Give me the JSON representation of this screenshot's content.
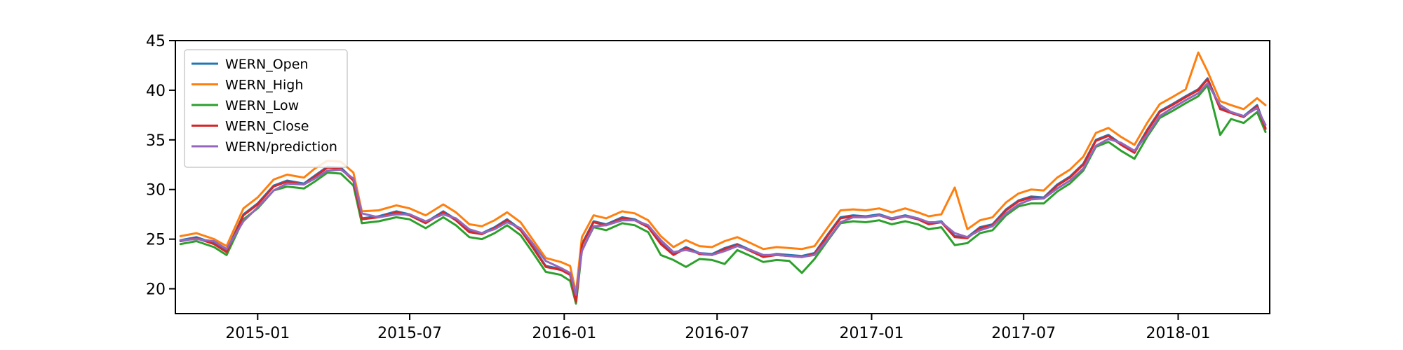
{
  "chart_data": {
    "type": "line",
    "title": "",
    "xlabel": "",
    "ylabel": "",
    "x_range": [
      "2014-09-25",
      "2018-04-20"
    ],
    "ylim": [
      17.5,
      45
    ],
    "grid": false,
    "legend_position": "upper-left",
    "x_ticks": [
      {
        "date": "2015-01-01",
        "label": "2015-01"
      },
      {
        "date": "2015-07-01",
        "label": "2015-07"
      },
      {
        "date": "2016-01-01",
        "label": "2016-01"
      },
      {
        "date": "2016-07-01",
        "label": "2016-07"
      },
      {
        "date": "2017-01-01",
        "label": "2017-01"
      },
      {
        "date": "2017-07-01",
        "label": "2017-07"
      },
      {
        "date": "2018-01-01",
        "label": "2018-01"
      }
    ],
    "y_ticks": [
      {
        "value": 20,
        "label": "20"
      },
      {
        "value": 25,
        "label": "25"
      },
      {
        "value": 30,
        "label": "30"
      },
      {
        "value": 35,
        "label": "35"
      },
      {
        "value": 40,
        "label": "40"
      },
      {
        "value": 45,
        "label": "45"
      }
    ],
    "x": [
      "2014-10-01",
      "2014-10-20",
      "2014-11-10",
      "2014-11-25",
      "2014-12-15",
      "2015-01-01",
      "2015-01-20",
      "2015-02-05",
      "2015-02-25",
      "2015-03-10",
      "2015-03-25",
      "2015-04-10",
      "2015-04-25",
      "2015-05-05",
      "2015-05-25",
      "2015-06-15",
      "2015-07-01",
      "2015-07-20",
      "2015-08-10",
      "2015-08-25",
      "2015-09-10",
      "2015-09-25",
      "2015-10-10",
      "2015-10-25",
      "2015-11-10",
      "2015-11-25",
      "2015-12-10",
      "2015-12-28",
      "2016-01-08",
      "2016-01-15",
      "2016-01-22",
      "2016-02-05",
      "2016-02-20",
      "2016-03-10",
      "2016-03-25",
      "2016-04-10",
      "2016-04-25",
      "2016-05-10",
      "2016-05-25",
      "2016-06-10",
      "2016-06-25",
      "2016-07-10",
      "2016-07-25",
      "2016-08-10",
      "2016-08-25",
      "2016-09-10",
      "2016-09-25",
      "2016-10-10",
      "2016-10-25",
      "2016-11-10",
      "2016-11-25",
      "2016-12-10",
      "2016-12-25",
      "2017-01-10",
      "2017-01-25",
      "2017-02-10",
      "2017-02-25",
      "2017-03-10",
      "2017-03-25",
      "2017-04-10",
      "2017-04-25",
      "2017-05-10",
      "2017-05-25",
      "2017-06-10",
      "2017-06-25",
      "2017-07-10",
      "2017-07-25",
      "2017-08-10",
      "2017-08-25",
      "2017-09-10",
      "2017-09-25",
      "2017-10-10",
      "2017-10-25",
      "2017-11-10",
      "2017-11-25",
      "2017-12-10",
      "2017-12-25",
      "2018-01-10",
      "2018-01-25",
      "2018-02-05",
      "2018-02-20",
      "2018-03-05",
      "2018-03-20",
      "2018-04-05",
      "2018-04-15"
    ],
    "series": [
      {
        "name": "WERN_Open",
        "color": "#1f77b4",
        "values": [
          24.9,
          25.2,
          24.6,
          23.8,
          27.5,
          28.6,
          30.4,
          30.9,
          30.6,
          31.4,
          32.3,
          32.2,
          31.0,
          27.1,
          27.3,
          27.8,
          27.5,
          26.7,
          27.8,
          27.0,
          25.8,
          25.6,
          26.2,
          27.0,
          26.0,
          24.2,
          22.3,
          22.0,
          21.5,
          18.8,
          24.5,
          26.8,
          26.5,
          27.2,
          27.0,
          26.3,
          24.6,
          23.5,
          24.2,
          23.6,
          23.5,
          24.1,
          24.5,
          23.9,
          23.3,
          23.5,
          23.4,
          23.3,
          23.6,
          25.5,
          27.2,
          27.4,
          27.3,
          27.5,
          27.1,
          27.4,
          27.1,
          26.6,
          26.8,
          25.3,
          25.2,
          26.2,
          26.5,
          28.0,
          28.9,
          29.3,
          29.2,
          30.5,
          31.3,
          32.6,
          35.0,
          35.5,
          34.6,
          33.8,
          36.0,
          37.9,
          38.6,
          39.4,
          40.1,
          41.2,
          38.2,
          37.8,
          37.4,
          38.5,
          36.2
        ]
      },
      {
        "name": "WERN_High",
        "color": "#ff7f0e",
        "values": [
          25.3,
          25.6,
          25.0,
          24.3,
          28.1,
          29.2,
          31.0,
          31.5,
          31.2,
          32.1,
          32.9,
          32.8,
          31.7,
          27.8,
          27.9,
          28.4,
          28.1,
          27.4,
          28.5,
          27.7,
          26.5,
          26.3,
          26.9,
          27.7,
          26.7,
          24.9,
          23.1,
          22.7,
          22.3,
          19.6,
          25.2,
          27.4,
          27.1,
          27.8,
          27.6,
          26.9,
          25.3,
          24.2,
          24.9,
          24.3,
          24.2,
          24.8,
          25.2,
          24.6,
          24.0,
          24.2,
          24.1,
          24.0,
          24.3,
          26.2,
          27.9,
          28.0,
          27.9,
          28.1,
          27.7,
          28.1,
          27.7,
          27.3,
          27.5,
          30.2,
          26.0,
          26.9,
          27.2,
          28.7,
          29.6,
          30.0,
          29.9,
          31.2,
          32.0,
          33.3,
          35.7,
          36.2,
          35.3,
          34.5,
          36.7,
          38.6,
          39.3,
          40.1,
          43.8,
          41.9,
          38.9,
          38.5,
          38.1,
          39.2,
          38.5
        ]
      },
      {
        "name": "WERN_Low",
        "color": "#2ca02c",
        "values": [
          24.5,
          24.8,
          24.2,
          23.4,
          27.0,
          28.1,
          29.9,
          30.3,
          30.1,
          30.8,
          31.7,
          31.6,
          30.4,
          26.6,
          26.8,
          27.2,
          27.0,
          26.1,
          27.2,
          26.4,
          25.2,
          25.0,
          25.6,
          26.4,
          25.4,
          23.6,
          21.7,
          21.4,
          20.8,
          18.5,
          23.9,
          26.2,
          25.9,
          26.6,
          26.4,
          25.7,
          23.4,
          22.9,
          22.2,
          23.0,
          22.9,
          22.5,
          23.9,
          23.3,
          22.7,
          22.9,
          22.8,
          21.6,
          23.0,
          24.9,
          26.6,
          26.8,
          26.7,
          26.9,
          26.5,
          26.8,
          26.5,
          26.0,
          26.2,
          24.4,
          24.6,
          25.6,
          25.9,
          27.4,
          28.3,
          28.6,
          28.6,
          29.8,
          30.6,
          31.9,
          34.3,
          34.8,
          33.9,
          33.1,
          35.3,
          37.2,
          37.9,
          38.7,
          39.4,
          40.5,
          35.5,
          37.1,
          36.7,
          37.8,
          35.8
        ]
      },
      {
        "name": "WERN_Close",
        "color": "#d62728",
        "values": [
          24.8,
          25.1,
          24.5,
          23.7,
          27.4,
          28.5,
          30.3,
          30.8,
          30.5,
          31.3,
          32.2,
          32.1,
          30.9,
          27.0,
          27.2,
          27.7,
          27.4,
          26.6,
          27.7,
          26.9,
          25.7,
          25.5,
          26.1,
          26.9,
          25.9,
          24.1,
          22.2,
          21.9,
          21.4,
          18.7,
          24.4,
          26.7,
          26.4,
          27.1,
          26.9,
          26.2,
          24.5,
          23.4,
          24.1,
          23.5,
          23.4,
          24.0,
          24.4,
          23.8,
          23.2,
          23.4,
          23.3,
          23.2,
          23.5,
          25.4,
          27.1,
          27.3,
          27.2,
          27.4,
          27.0,
          27.3,
          27.0,
          26.5,
          26.7,
          25.2,
          25.1,
          26.1,
          26.4,
          27.9,
          28.8,
          29.2,
          29.1,
          30.4,
          31.2,
          32.5,
          34.9,
          35.4,
          34.5,
          33.7,
          35.9,
          37.8,
          38.5,
          39.3,
          40.0,
          41.1,
          38.1,
          37.7,
          37.3,
          38.4,
          36.1
        ]
      },
      {
        "name": "WERN/prediction",
        "color": "#9467bd",
        "values": [
          24.9,
          25.0,
          24.8,
          24.0,
          26.8,
          28.2,
          29.9,
          30.6,
          30.5,
          31.1,
          31.9,
          32.0,
          31.1,
          27.6,
          27.2,
          27.5,
          27.5,
          26.8,
          27.5,
          27.1,
          26.0,
          25.6,
          26.0,
          26.7,
          26.1,
          24.5,
          22.8,
          22.1,
          21.6,
          19.4,
          23.8,
          26.3,
          26.4,
          26.9,
          26.9,
          26.4,
          24.9,
          23.7,
          23.9,
          23.6,
          23.4,
          23.8,
          24.3,
          23.9,
          23.4,
          23.4,
          23.3,
          23.2,
          23.4,
          25.0,
          26.7,
          27.2,
          27.2,
          27.4,
          27.1,
          27.3,
          27.1,
          26.7,
          26.7,
          25.6,
          25.2,
          25.9,
          26.3,
          27.6,
          28.5,
          29.0,
          29.1,
          30.1,
          30.9,
          32.1,
          34.4,
          35.1,
          34.7,
          33.9,
          35.5,
          37.4,
          38.2,
          39.0,
          39.7,
          40.7,
          38.5,
          37.8,
          37.4,
          38.2,
          36.5
        ]
      }
    ]
  }
}
